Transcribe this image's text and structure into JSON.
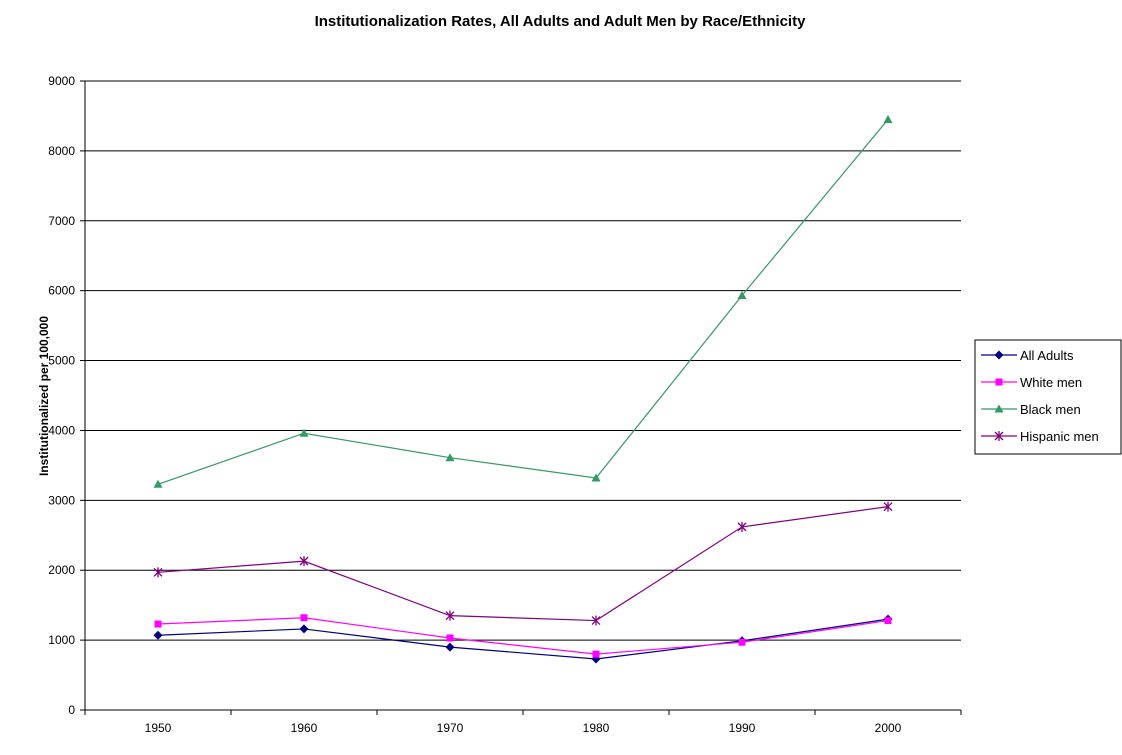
{
  "chart_data": {
    "type": "line",
    "title": "Institutionalization Rates, All Adults and Adult Men by Race/Ethnicity",
    "xlabel": "",
    "ylabel": "Institutionalized per 100,000",
    "categories": [
      "1950",
      "1960",
      "1970",
      "1980",
      "1990",
      "2000"
    ],
    "ylim": [
      0,
      9000
    ],
    "yticks": [
      "0",
      "1000",
      "2000",
      "3000",
      "4000",
      "5000",
      "6000",
      "7000",
      "8000",
      "9000"
    ],
    "grid": "horizontal",
    "legend_position": "right",
    "series": [
      {
        "name": "All Adults",
        "color": "#000080",
        "marker": "diamond",
        "values": [
          1070,
          1160,
          900,
          730,
          990,
          1300
        ]
      },
      {
        "name": "White men",
        "color": "#ff00ff",
        "marker": "square",
        "values": [
          1230,
          1320,
          1030,
          800,
          970,
          1280
        ]
      },
      {
        "name": "Black men",
        "color": "#339966",
        "marker": "triangle",
        "values": [
          3230,
          3960,
          3610,
          3320,
          5930,
          8450
        ]
      },
      {
        "name": "Hispanic men",
        "color": "#800080",
        "marker": "star",
        "values": [
          1970,
          2130,
          1350,
          1280,
          2620,
          2910
        ]
      }
    ]
  }
}
